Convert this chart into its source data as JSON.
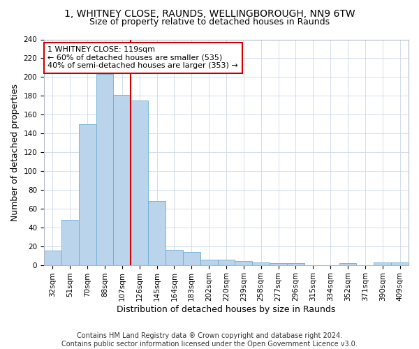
{
  "title": "1, WHITNEY CLOSE, RAUNDS, WELLINGBOROUGH, NN9 6TW",
  "subtitle": "Size of property relative to detached houses in Raunds",
  "xlabel": "Distribution of detached houses by size in Raunds",
  "ylabel": "Number of detached properties",
  "categories": [
    "32sqm",
    "51sqm",
    "70sqm",
    "88sqm",
    "107sqm",
    "126sqm",
    "145sqm",
    "164sqm",
    "183sqm",
    "202sqm",
    "220sqm",
    "239sqm",
    "258sqm",
    "277sqm",
    "296sqm",
    "315sqm",
    "334sqm",
    "352sqm",
    "371sqm",
    "390sqm",
    "409sqm"
  ],
  "values": [
    15,
    48,
    150,
    203,
    181,
    175,
    68,
    16,
    14,
    6,
    6,
    4,
    3,
    2,
    2,
    0,
    0,
    2,
    0,
    3,
    3
  ],
  "bar_color": "#bad4eb",
  "bar_edge_color": "#6aaed6",
  "vline_color": "#cc0000",
  "vline_position": 4.5,
  "annotation_text": "1 WHITNEY CLOSE: 119sqm\n← 60% of detached houses are smaller (535)\n40% of semi-detached houses are larger (353) →",
  "annotation_box_color": "#ffffff",
  "annotation_box_edge": "#cc0000",
  "ylim": [
    0,
    240
  ],
  "yticks": [
    0,
    20,
    40,
    60,
    80,
    100,
    120,
    140,
    160,
    180,
    200,
    220,
    240
  ],
  "footer": "Contains HM Land Registry data ® Crown copyright and database right 2024.\nContains public sector information licensed under the Open Government Licence v3.0.",
  "bg_color": "#ffffff",
  "grid_color": "#ccd8ea",
  "title_fontsize": 10,
  "subtitle_fontsize": 9,
  "axis_label_fontsize": 9,
  "tick_fontsize": 7.5,
  "annotation_fontsize": 8,
  "footer_fontsize": 7
}
